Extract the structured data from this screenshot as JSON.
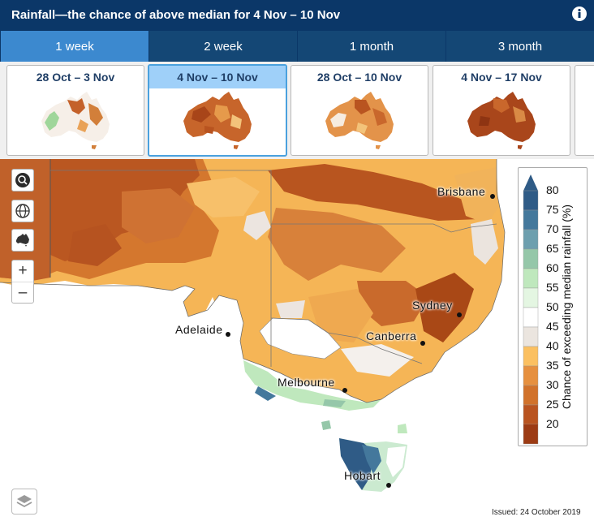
{
  "header": {
    "title": "Rainfall—the chance of above median for 4 Nov – 10 Nov",
    "info_icon": "info-icon"
  },
  "tabs": [
    {
      "label": "1 week",
      "active": true
    },
    {
      "label": "2 week",
      "active": false
    },
    {
      "label": "1 month",
      "active": false
    },
    {
      "label": "3 month",
      "active": false
    }
  ],
  "thumbnails": [
    {
      "label": "28 Oct – 3 Nov",
      "selected": false
    },
    {
      "label": "4 Nov – 10 Nov",
      "selected": true
    },
    {
      "label": "28 Oct – 10 Nov",
      "selected": false
    },
    {
      "label": "4 Nov – 17 Nov",
      "selected": false
    }
  ],
  "map_controls": {
    "search_icon": "search-icon",
    "globe_icon": "globe-icon",
    "australia_icon": "australia-icon",
    "zoom_in": "+",
    "zoom_out": "–",
    "layers_icon": "layers-icon"
  },
  "cities": [
    {
      "name": "Brisbane"
    },
    {
      "name": "Sydney"
    },
    {
      "name": "Canberra"
    },
    {
      "name": "Adelaide"
    },
    {
      "name": "Melbourne"
    },
    {
      "name": "Hobart"
    }
  ],
  "legend": {
    "title": "Chance of exceeding median rainfall (%)",
    "ticks": [
      "80",
      "75",
      "70",
      "65",
      "60",
      "55",
      "50",
      "45",
      "40",
      "35",
      "30",
      "25",
      "20"
    ],
    "colors": [
      "#2f5b86",
      "#44789c",
      "#6d9fae",
      "#95c7a9",
      "#bfe8bd",
      "#e4f6e2",
      "#ffffff",
      "#ebe5df",
      "#fbc061",
      "#e6903f",
      "#d1722b",
      "#b95420",
      "#9c3b14"
    ]
  },
  "issued": "Issued: 24 October 2019"
}
